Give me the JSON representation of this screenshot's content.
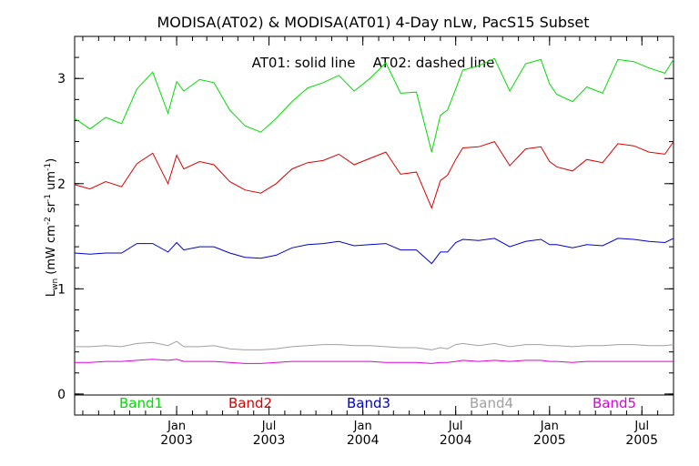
{
  "chart_data": {
    "type": "line",
    "title": "MODISA(AT02) & MODISA(AT01) 4-Day nLw, PacS15 Subset",
    "annotation": "AT01: solid line    AT02: dashed line",
    "ylabel": "L_wn (mW cm^-2 sr^-1 um^-1)",
    "ylabel_parts": {
      "main": "L",
      "sub": "wn",
      "units_open": " (mW cm",
      "sup1": "-2",
      "sr": " sr",
      "sup2": "-1",
      "um": " um",
      "sup3": "-1",
      "close": ")"
    },
    "ylim": [
      -0.2,
      3.4
    ],
    "yticks": [
      0,
      1,
      2,
      3
    ],
    "yticklabels": [
      "0",
      "1",
      "2",
      "3"
    ],
    "xlim": [
      "2002-06-15",
      "2005-09-01"
    ],
    "xticks": [
      {
        "date": "2003-01-01",
        "month": "Jan",
        "year": "2003"
      },
      {
        "date": "2003-07-01",
        "month": "Jul",
        "year": "2003"
      },
      {
        "date": "2004-01-01",
        "month": "Jan",
        "year": "2004"
      },
      {
        "date": "2004-07-01",
        "month": "Jul",
        "year": "2004"
      },
      {
        "date": "2005-01-01",
        "month": "Jan",
        "year": "2005"
      },
      {
        "date": "2005-07-01",
        "month": "Jul",
        "year": "2005"
      }
    ],
    "grid": false,
    "legend_position": "bottom",
    "x": [
      "2002-06-15",
      "2002-07-15",
      "2002-08-15",
      "2002-09-15",
      "2002-10-15",
      "2002-11-15",
      "2002-12-15",
      "2003-01-01",
      "2003-01-15",
      "2003-02-15",
      "2003-03-15",
      "2003-04-15",
      "2003-05-15",
      "2003-06-15",
      "2003-07-15",
      "2003-08-15",
      "2003-09-15",
      "2003-10-15",
      "2003-11-15",
      "2003-12-15",
      "2004-01-15",
      "2004-02-15",
      "2004-03-15",
      "2004-04-15",
      "2004-05-15",
      "2004-06-01",
      "2004-06-15",
      "2004-07-01",
      "2004-07-15",
      "2004-08-15",
      "2004-09-15",
      "2004-10-15",
      "2004-11-15",
      "2004-12-15",
      "2005-01-01",
      "2005-01-15",
      "2005-02-15",
      "2005-03-15",
      "2005-04-15",
      "2005-05-15",
      "2005-06-15",
      "2005-07-15",
      "2005-08-15",
      "2005-09-01"
    ],
    "series": [
      {
        "name": "Band1",
        "color": "#00dd00",
        "values": [
          2.62,
          2.52,
          2.63,
          2.57,
          2.9,
          3.06,
          2.67,
          2.97,
          2.88,
          2.99,
          2.96,
          2.7,
          2.55,
          2.49,
          2.62,
          2.78,
          2.91,
          2.96,
          3.03,
          2.88,
          3.0,
          3.15,
          2.86,
          2.87,
          2.3,
          2.65,
          2.7,
          2.9,
          3.08,
          3.12,
          3.19,
          2.88,
          3.14,
          3.18,
          2.95,
          2.85,
          2.78,
          2.92,
          2.86,
          3.18,
          3.16,
          3.1,
          3.05,
          3.18
        ]
      },
      {
        "name": "Band2",
        "color": "#dd0000",
        "values": [
          1.99,
          1.95,
          2.02,
          1.97,
          2.19,
          2.29,
          2.0,
          2.27,
          2.14,
          2.21,
          2.18,
          2.02,
          1.94,
          1.91,
          2.0,
          2.14,
          2.2,
          2.22,
          2.28,
          2.18,
          2.24,
          2.3,
          2.09,
          2.11,
          1.77,
          2.03,
          2.08,
          2.23,
          2.34,
          2.35,
          2.4,
          2.17,
          2.33,
          2.35,
          2.21,
          2.16,
          2.12,
          2.23,
          2.2,
          2.38,
          2.36,
          2.3,
          2.28,
          2.4
        ]
      },
      {
        "name": "Band3",
        "color": "#0000cc",
        "values": [
          1.34,
          1.33,
          1.34,
          1.34,
          1.43,
          1.43,
          1.35,
          1.44,
          1.37,
          1.4,
          1.4,
          1.34,
          1.3,
          1.29,
          1.32,
          1.39,
          1.42,
          1.43,
          1.45,
          1.41,
          1.42,
          1.43,
          1.37,
          1.37,
          1.24,
          1.35,
          1.35,
          1.44,
          1.47,
          1.46,
          1.48,
          1.4,
          1.45,
          1.47,
          1.42,
          1.42,
          1.39,
          1.42,
          1.41,
          1.48,
          1.47,
          1.45,
          1.44,
          1.48
        ]
      },
      {
        "name": "Band4",
        "color": "#a0a0a0",
        "values": [
          0.45,
          0.45,
          0.46,
          0.45,
          0.48,
          0.49,
          0.46,
          0.5,
          0.45,
          0.45,
          0.46,
          0.43,
          0.42,
          0.42,
          0.43,
          0.45,
          0.46,
          0.47,
          0.47,
          0.46,
          0.46,
          0.45,
          0.44,
          0.44,
          0.42,
          0.44,
          0.43,
          0.47,
          0.48,
          0.46,
          0.48,
          0.45,
          0.47,
          0.47,
          0.46,
          0.46,
          0.45,
          0.46,
          0.46,
          0.47,
          0.47,
          0.46,
          0.46,
          0.47
        ]
      },
      {
        "name": "Band5",
        "color": "#dd00dd",
        "values": [
          0.3,
          0.3,
          0.31,
          0.31,
          0.32,
          0.33,
          0.32,
          0.33,
          0.31,
          0.31,
          0.31,
          0.3,
          0.29,
          0.29,
          0.3,
          0.31,
          0.31,
          0.31,
          0.31,
          0.31,
          0.31,
          0.3,
          0.3,
          0.3,
          0.29,
          0.3,
          0.3,
          0.31,
          0.32,
          0.31,
          0.32,
          0.31,
          0.32,
          0.32,
          0.31,
          0.31,
          0.3,
          0.31,
          0.31,
          0.31,
          0.31,
          0.31,
          0.31,
          0.31
        ]
      }
    ]
  }
}
